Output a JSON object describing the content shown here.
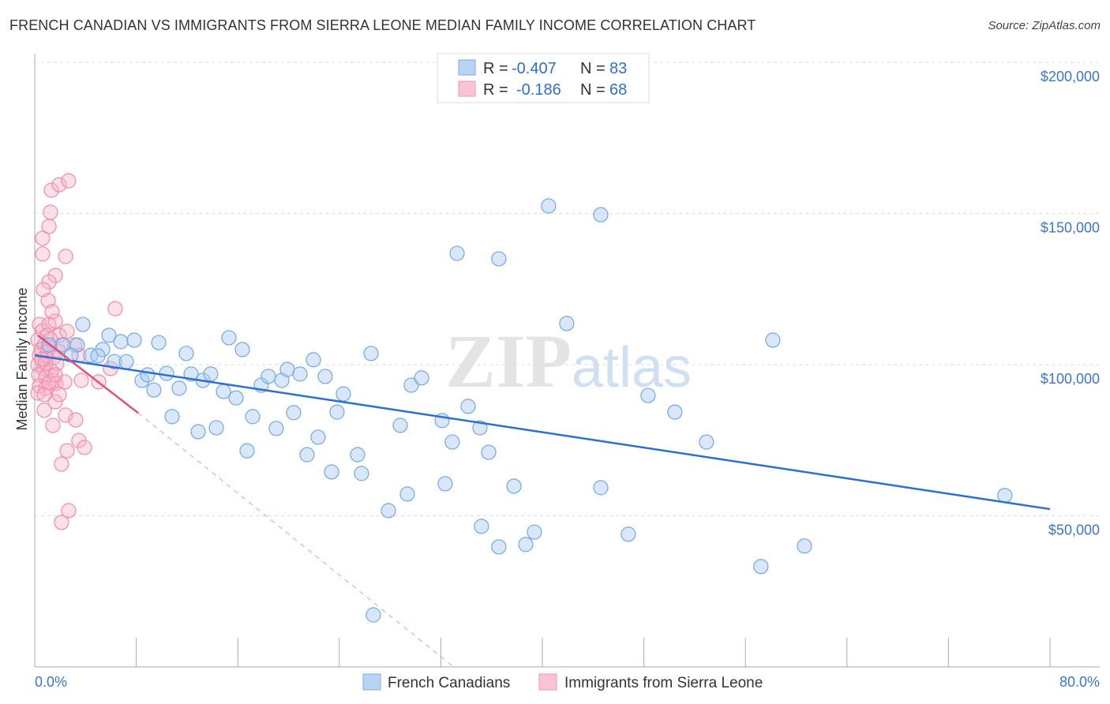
{
  "title": "FRENCH CANADIAN VS IMMIGRANTS FROM SIERRA LEONE MEDIAN FAMILY INCOME CORRELATION CHART",
  "source": "Source: ZipAtlas.com",
  "watermark": "ZIPatlas",
  "colors": {
    "blue": "#6fa8e8",
    "blue_line": "#2a6fd6",
    "pink": "#f08aaa",
    "pink_line": "#e0507f"
  },
  "chart_data": {
    "type": "scatter",
    "title": "French Canadian vs Immigrants from Sierra Leone Median Family Income Correlation Chart",
    "xlabel": "",
    "ylabel": "Median Family Income",
    "xlim": [
      0,
      80
    ],
    "ylim": [
      0,
      200000
    ],
    "x_tick_labels": [
      "0.0%",
      "80.0%"
    ],
    "y_ticks": [
      50000,
      100000,
      150000,
      200000
    ],
    "y_tick_labels": [
      "$50,000",
      "$100,000",
      "$150,000",
      "$200,000"
    ],
    "grid": true,
    "legend": [
      {
        "name": "French Canadians",
        "r_label": "R =",
        "r": "-0.407",
        "n_label": "N =",
        "n": "83"
      },
      {
        "name": "Immigrants from Sierra Leone",
        "r_label": "R =",
        "r": "-0.186",
        "n_label": "N =",
        "n": "68"
      }
    ],
    "series": [
      {
        "name": "French Canadians",
        "points": [
          [
            3.79,
            113.3
          ],
          [
            5.85,
            109.7
          ],
          [
            1.12,
            106.5
          ],
          [
            2.24,
            106.5
          ],
          [
            3.36,
            106.5
          ],
          [
            2.86,
            103.1
          ],
          [
            4.42,
            103.1
          ],
          [
            5.35,
            105.0
          ],
          [
            4.98,
            102.9
          ],
          [
            6.28,
            101.0
          ],
          [
            6.78,
            107.6
          ],
          [
            7.22,
            101.0
          ],
          [
            7.84,
            108.1
          ],
          [
            8.46,
            94.8
          ],
          [
            8.89,
            96.6
          ],
          [
            9.39,
            91.6
          ],
          [
            9.77,
            107.3
          ],
          [
            10.39,
            97.1
          ],
          [
            10.82,
            82.8
          ],
          [
            11.38,
            92.2
          ],
          [
            11.94,
            103.7
          ],
          [
            12.32,
            96.9
          ],
          [
            12.88,
            77.8
          ],
          [
            13.25,
            94.8
          ],
          [
            13.87,
            96.9
          ],
          [
            14.31,
            79.1
          ],
          [
            14.87,
            91.1
          ],
          [
            15.3,
            108.9
          ],
          [
            15.86,
            89.0
          ],
          [
            16.36,
            105.0
          ],
          [
            16.73,
            71.5
          ],
          [
            17.17,
            82.8
          ],
          [
            17.85,
            93.2
          ],
          [
            18.41,
            96.1
          ],
          [
            19.03,
            78.9
          ],
          [
            19.47,
            94.8
          ],
          [
            19.9,
            98.4
          ],
          [
            20.4,
            84.1
          ],
          [
            20.9,
            96.9
          ],
          [
            21.46,
            70.2
          ],
          [
            21.96,
            101.6
          ],
          [
            22.33,
            76.0
          ],
          [
            22.89,
            96.1
          ],
          [
            23.39,
            64.5
          ],
          [
            23.82,
            84.3
          ],
          [
            24.32,
            90.3
          ],
          [
            25.44,
            70.2
          ],
          [
            25.75,
            64.0
          ],
          [
            26.5,
            103.7
          ],
          [
            27.87,
            51.7
          ],
          [
            28.8,
            79.9
          ],
          [
            29.36,
            57.2
          ],
          [
            29.67,
            93.2
          ],
          [
            30.48,
            95.6
          ],
          [
            32.1,
            81.5
          ],
          [
            32.34,
            60.6
          ],
          [
            32.9,
            74.4
          ],
          [
            33.28,
            136.8
          ],
          [
            34.15,
            86.2
          ],
          [
            35.08,
            79.1
          ],
          [
            35.2,
            46.5
          ],
          [
            35.77,
            71.0
          ],
          [
            36.57,
            39.7
          ],
          [
            36.57,
            135.0
          ],
          [
            37.76,
            59.8
          ],
          [
            38.69,
            40.5
          ],
          [
            39.37,
            44.6
          ],
          [
            40.49,
            152.5
          ],
          [
            41.92,
            113.6
          ],
          [
            44.6,
            149.6
          ],
          [
            44.6,
            59.3
          ],
          [
            46.77,
            43.9
          ],
          [
            48.33,
            89.8
          ],
          [
            50.44,
            84.3
          ],
          [
            52.93,
            74.4
          ],
          [
            57.22,
            33.2
          ],
          [
            58.16,
            108.1
          ],
          [
            60.65,
            40.0
          ],
          [
            76.44,
            56.7
          ],
          [
            26.68,
            17.2
          ]
        ],
        "trend": {
          "x": [
            0,
            80
          ],
          "y": [
            103100,
            52200
          ]
        }
      },
      {
        "name": "Immigrants from Sierra Leone",
        "points": [
          [
            1.31,
            157.7
          ],
          [
            1.93,
            159.5
          ],
          [
            2.67,
            160.8
          ],
          [
            1.12,
            145.7
          ],
          [
            1.24,
            150.4
          ],
          [
            0.62,
            141.8
          ],
          [
            0.62,
            136.6
          ],
          [
            2.43,
            135.8
          ],
          [
            1.62,
            129.5
          ],
          [
            1.12,
            127.4
          ],
          [
            0.68,
            124.8
          ],
          [
            1.06,
            121.2
          ],
          [
            6.34,
            118.5
          ],
          [
            0.37,
            113.3
          ],
          [
            0.62,
            111.2
          ],
          [
            1.12,
            113.3
          ],
          [
            1.62,
            114.4
          ],
          [
            1.0,
            109.7
          ],
          [
            0.25,
            108.1
          ],
          [
            0.75,
            106.5
          ],
          [
            1.18,
            105.7
          ],
          [
            1.93,
            109.7
          ],
          [
            0.37,
            103.1
          ],
          [
            0.81,
            101.8
          ],
          [
            1.49,
            102.4
          ],
          [
            2.11,
            106.5
          ],
          [
            0.25,
            100.0
          ],
          [
            0.68,
            98.7
          ],
          [
            1.31,
            97.9
          ],
          [
            1.74,
            100.3
          ],
          [
            0.31,
            96.6
          ],
          [
            0.87,
            95.8
          ],
          [
            1.49,
            94.8
          ],
          [
            0.37,
            93.0
          ],
          [
            0.87,
            92.2
          ],
          [
            1.68,
            93.7
          ],
          [
            2.36,
            94.3
          ],
          [
            3.67,
            94.8
          ],
          [
            5.04,
            94.3
          ],
          [
            5.97,
            98.7
          ],
          [
            0.25,
            90.6
          ],
          [
            0.75,
            84.9
          ],
          [
            1.62,
            87.7
          ],
          [
            2.43,
            83.3
          ],
          [
            1.43,
            79.9
          ],
          [
            3.23,
            81.7
          ],
          [
            3.48,
            74.9
          ],
          [
            3.92,
            72.6
          ],
          [
            2.55,
            71.5
          ],
          [
            2.11,
            67.1
          ],
          [
            2.67,
            51.7
          ],
          [
            2.11,
            47.8
          ],
          [
            0.5,
            105.0
          ],
          [
            1.0,
            104.4
          ],
          [
            1.37,
            117.5
          ],
          [
            1.24,
            108.4
          ],
          [
            1.87,
            104.4
          ],
          [
            3.48,
            103.1
          ],
          [
            0.75,
            90.1
          ],
          [
            3.17,
            106.5
          ],
          [
            2.55,
            111.0
          ],
          [
            0.87,
            100.5
          ],
          [
            1.12,
            94.0
          ],
          [
            1.62,
            96.6
          ],
          [
            0.56,
            101.8
          ],
          [
            1.93,
            90.1
          ]
        ],
        "trend": {
          "x": [
            0.25,
            8.15
          ],
          "y": [
            109700,
            84000
          ],
          "extended_x": [
            8.15,
            33
          ],
          "extended_y": [
            84000,
            0
          ]
        }
      }
    ]
  }
}
